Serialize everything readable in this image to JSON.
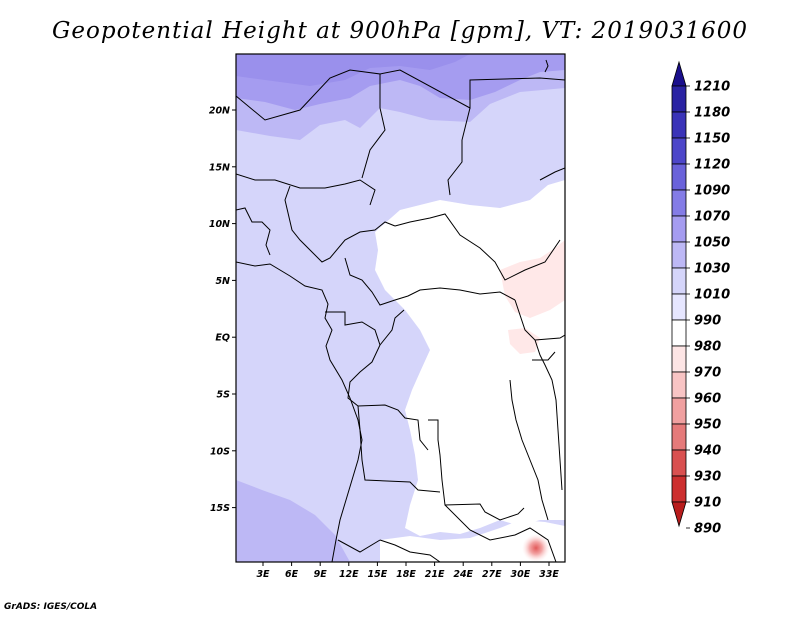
{
  "title": "Geopotential Height at 900hPa [gpm], VT: 2019031600",
  "credit": "GrADS: IGES/COLA",
  "map": {
    "lon_labels": [
      "3E",
      "6E",
      "9E",
      "12E",
      "15E",
      "18E",
      "21E",
      "24E",
      "27E",
      "30E",
      "33E"
    ],
    "lat_labels": [
      "20N",
      "15N",
      "10N",
      "5N",
      "EQ",
      "5S",
      "10S",
      "15S"
    ],
    "field_colors": {
      "c1070": "#a59cf0",
      "c1050": "#bdb8f5",
      "c1030": "#d5d5fa",
      "c1010": "#e6e6ff",
      "c990": "#ffffff",
      "c980": "#ffe8e8",
      "c970": "#f8b8b8",
      "c960": "#e87878"
    }
  },
  "colorbar": {
    "levels": [
      "1210",
      "1180",
      "1150",
      "1120",
      "1090",
      "1070",
      "1050",
      "1030",
      "1010",
      "990",
      "980",
      "970",
      "960",
      "950",
      "940",
      "930",
      "910",
      "890"
    ],
    "colors": [
      "#1a0f8c",
      "#2a23a3",
      "#3a33b8",
      "#4d46c9",
      "#6a62da",
      "#847ce6",
      "#a59cf0",
      "#bdb8f5",
      "#d5d5fa",
      "#e6e6ff",
      "#ffffff",
      "#fde5e5",
      "#f8c4c4",
      "#f0a0a0",
      "#e57a7a",
      "#d95050",
      "#cc2f2f",
      "#b81c1c"
    ]
  }
}
